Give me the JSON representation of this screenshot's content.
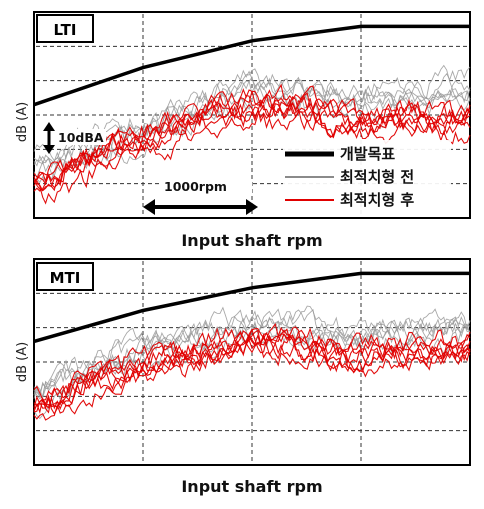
{
  "chart_data": [
    {
      "type": "line",
      "title": "LTI",
      "xlabel": "Input shaft rpm",
      "ylabel": "dB (A)",
      "grid": true,
      "legend_position": "center-right, inside plot",
      "legend": [
        {
          "label": "개발목표",
          "color": "#000000"
        },
        {
          "label": "최적치형 전",
          "color": "#8a8a8a"
        },
        {
          "label": "최적치형 후",
          "color": "#e00000"
        }
      ],
      "annotations": [
        "10dBA",
        "1000rpm"
      ],
      "series": [
        {
          "role": "target",
          "x": [
            0,
            0.25,
            0.5,
            0.75,
            1.0
          ],
          "y": [
            0.55,
            0.73,
            0.86,
            0.93,
            0.93
          ]
        },
        {
          "role": "before",
          "count": 6,
          "x": [
            0,
            0.25,
            0.5,
            0.75,
            1.0
          ],
          "y": [
            0.24,
            0.42,
            0.62,
            0.56,
            0.62
          ]
        },
        {
          "role": "after",
          "count": 7,
          "x": [
            0,
            0.25,
            0.5,
            0.75,
            1.0
          ],
          "y": [
            0.15,
            0.38,
            0.55,
            0.45,
            0.48
          ]
        }
      ]
    },
    {
      "type": "line",
      "title": "MTI",
      "xlabel": "Input shaft rpm",
      "ylabel": "dB (A)",
      "grid": true,
      "series": [
        {
          "role": "target",
          "x": [
            0,
            0.25,
            0.5,
            0.75,
            1.0
          ],
          "y": [
            0.6,
            0.75,
            0.86,
            0.93,
            0.93
          ]
        },
        {
          "role": "before",
          "count": 6,
          "x": [
            0,
            0.25,
            0.5,
            0.75,
            1.0
          ],
          "y": [
            0.34,
            0.56,
            0.66,
            0.62,
            0.66
          ]
        },
        {
          "role": "after",
          "count": 7,
          "x": [
            0,
            0.25,
            0.5,
            0.75,
            1.0
          ],
          "y": [
            0.28,
            0.48,
            0.6,
            0.53,
            0.57
          ]
        }
      ]
    }
  ],
  "colors": {
    "target": "#000000",
    "before": "#9a9a9a",
    "after": "#e00000",
    "grid": "#333333"
  }
}
